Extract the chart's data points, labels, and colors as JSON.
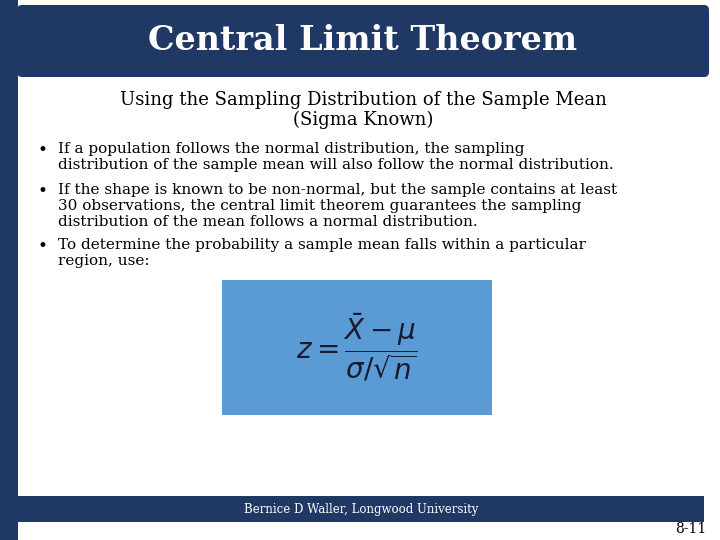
{
  "title": "Central Limit Theorem",
  "subtitle_line1": "Using the Sampling Distribution of the Sample Mean",
  "subtitle_line2": "(Sigma Known)",
  "bullet1_line1": "If a population follows the normal distribution, the sampling",
  "bullet1_line2": "distribution of the sample mean will also follow the normal distribution.",
  "bullet2_line1": "If the shape is known to be non-normal, but the sample contains at least",
  "bullet2_line2": "30 observations, the central limit theorem guarantees the sampling",
  "bullet2_line3": "distribution of the mean follows a normal distribution.",
  "bullet3_line1": "To determine the probability a sample mean falls within a particular",
  "bullet3_line2": "region, use:",
  "formula": "$z = \\dfrac{\\bar{X} - \\mu}{\\sigma/\\sqrt{n}}$",
  "footer": "Bernice D Waller, Longwood University",
  "page_num": "8-11",
  "bg_color": "#ffffff",
  "title_box_color": "#1F3864",
  "title_text_color": "#ffffff",
  "left_bar_color": "#1F3864",
  "footer_bar_color": "#1F3864",
  "formula_box_color": "#5B9BD5",
  "subtitle_color": "#000000",
  "bullet_color": "#000000",
  "footer_text_color": "#ffffff"
}
